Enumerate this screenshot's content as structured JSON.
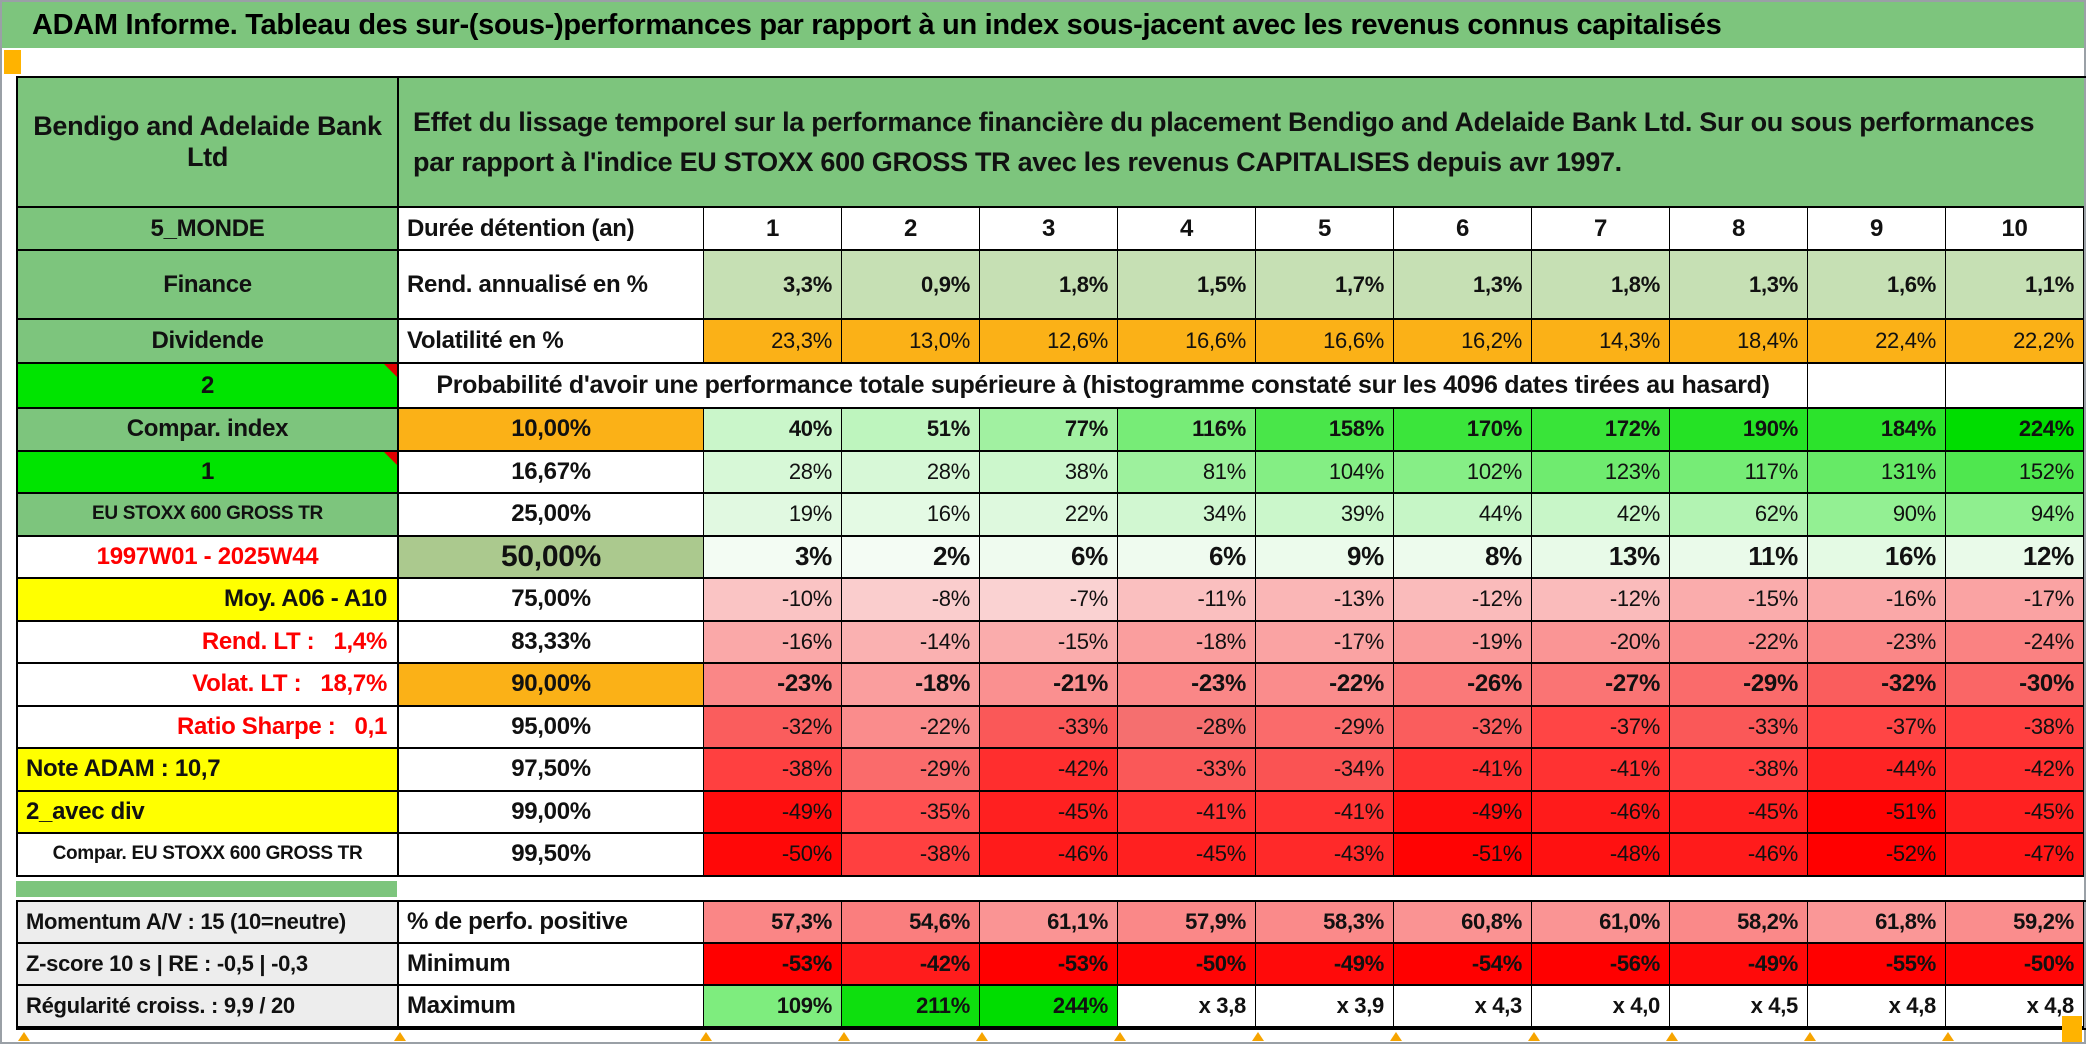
{
  "title": "ADAM Informe. Tableau des sur-(sous-)performances par rapport à un index sous-jacent avec les revenus connus capitalisés",
  "header": {
    "entity": "Bendigo and Adelaide Bank Ltd",
    "description": "Effet du lissage temporel sur la performance financière du placement Bendigo and Adelaide Bank Ltd. Sur ou sous performances par rapport à l'indice EU STOXX 600 GROSS TR avec les revenus CAPITALISES depuis avr 1997."
  },
  "palette": {
    "header_green": "#7dc57d",
    "bright_green": "#00e400",
    "orange": "#fbb117",
    "yellow": "#ffff00",
    "sage": "#abc98e",
    "light_green_row": "#c6e0b4",
    "gray_label": "#ededed",
    "red_text": "#fe0000",
    "pure_red": "#ff0000",
    "marker_orange": "#ffb300"
  },
  "table": {
    "rows": [
      {
        "h": "rh-a",
        "label": {
          "text": "5_MONDE",
          "cls": "lb-green"
        },
        "param": {
          "text": "Durée détention (an)",
          "cls": "pm-left"
        },
        "cells": [
          "1",
          "2",
          "3",
          "4",
          "5",
          "6",
          "7",
          "8",
          "9",
          "10"
        ],
        "bg": [
          "#fff",
          "#fff",
          "#fff",
          "#fff",
          "#fff",
          "#fff",
          "#fff",
          "#fff",
          "#fff",
          "#fff"
        ],
        "cells_bold": true,
        "cells_size": 24,
        "cells_align": "center"
      },
      {
        "h": "rh-b",
        "label": {
          "text": "Finance",
          "cls": "lb-green"
        },
        "param": {
          "text": "Rend. annualisé en %",
          "cls": "pm-left"
        },
        "cells": [
          "3,3%",
          "0,9%",
          "1,8%",
          "1,5%",
          "1,7%",
          "1,3%",
          "1,8%",
          "1,3%",
          "1,6%",
          "1,1%"
        ],
        "bg": [
          "#c6e0b4",
          "#c6e0b4",
          "#c6e0b4",
          "#c6e0b4",
          "#c6e0b4",
          "#c6e0b4",
          "#c6e0b4",
          "#c6e0b4",
          "#c6e0b4",
          "#c6e0b4"
        ],
        "cells_bold": true
      },
      {
        "h": "rh-c",
        "label": {
          "text": "Dividende",
          "cls": "lb-green"
        },
        "param": {
          "text": "Volatilité en %",
          "cls": "pm-left"
        },
        "cells": [
          "23,3%",
          "13,0%",
          "12,6%",
          "16,6%",
          "16,6%",
          "16,2%",
          "14,3%",
          "18,4%",
          "22,4%",
          "22,2%"
        ],
        "bg": [
          "#fbb117",
          "#fbb117",
          "#fbb117",
          "#fbb117",
          "#fbb117",
          "#fbb117",
          "#fbb117",
          "#fbb117",
          "#fbb117",
          "#fbb117"
        ]
      },
      {
        "h": "rh-d",
        "type": "prob",
        "label": {
          "text": "2",
          "cls": "lb-bright",
          "marker": true
        },
        "merged": "Probabilité d'avoir une performance totale supérieure à (histogramme constaté sur les 4096 dates tirées au hasard)",
        "empty": 2
      },
      {
        "h": "rh-e",
        "label": {
          "text": "Compar. index",
          "cls": "lb-green"
        },
        "param": {
          "text": "10,00%",
          "cls": "pm-orange"
        },
        "cells": [
          "40%",
          "51%",
          "77%",
          "116%",
          "158%",
          "170%",
          "172%",
          "190%",
          "184%",
          "224%"
        ],
        "bg": [
          "#caf6ca",
          "#bef5be",
          "#a1f1a1",
          "#77ec77",
          "#49e649",
          "#3be53b",
          "#39e439",
          "#25e225",
          "#2ce32c",
          "#00dd00"
        ],
        "cells_bold": true
      },
      {
        "h": "rh-e",
        "label": {
          "text": "1",
          "cls": "lb-bright",
          "marker": true
        },
        "param": {
          "text": "16,67%",
          "cls": "pm-pct"
        },
        "cells": [
          "28%",
          "28%",
          "38%",
          "81%",
          "104%",
          "102%",
          "123%",
          "117%",
          "131%",
          "152%"
        ],
        "bg": [
          "#d7f8d7",
          "#d7f8d7",
          "#ccf7cc",
          "#9df19d",
          "#84ee84",
          "#86ee86",
          "#6feb6f",
          "#76ec76",
          "#66ea66",
          "#4fe74f"
        ]
      },
      {
        "h": "rh-e",
        "label": {
          "text": "EU STOXX 600 GROSS TR",
          "cls": "lb-green-sm"
        },
        "param": {
          "text": "25,00%",
          "cls": "pm-pct"
        },
        "cells": [
          "19%",
          "16%",
          "22%",
          "34%",
          "39%",
          "44%",
          "42%",
          "62%",
          "90%",
          "94%"
        ],
        "bg": [
          "#e1f9e1",
          "#e4fae4",
          "#def9de",
          "#d1f7d1",
          "#cbf7cb",
          "#c6f6c6",
          "#c8f6c8",
          "#b2f3b2",
          "#93f093",
          "#8fef8f"
        ]
      },
      {
        "h": "rh-e",
        "label": {
          "text": "1997W01 - 2025W44",
          "cls": "lb-red-c"
        },
        "param": {
          "text": "50,00%",
          "cls": "pm-sage"
        },
        "cells": [
          "3%",
          "2%",
          "6%",
          "6%",
          "9%",
          "8%",
          "13%",
          "11%",
          "16%",
          "12%"
        ],
        "bg": [
          "#f3fcf3",
          "#f4fcf4",
          "#effbef",
          "#effbef",
          "#ecfbec",
          "#edfbed",
          "#e8fae8",
          "#eafaea",
          "#e4fae4",
          "#e9fae9"
        ],
        "cells_bold": true,
        "cells_size": 26
      },
      {
        "h": "rh-e",
        "label": {
          "text": "Moy. A06 - A10",
          "cls": "lb-yellow-r"
        },
        "param": {
          "text": "75,00%",
          "cls": "pm-pct"
        },
        "cells": [
          "-10%",
          "-8%",
          "-7%",
          "-11%",
          "-13%",
          "-12%",
          "-12%",
          "-15%",
          "-16%",
          "-17%"
        ],
        "bg": [
          "#fac4c4",
          "#facdcd",
          "#fad2d2",
          "#fabfbf",
          "#fab6b6",
          "#fabbbb",
          "#fabbbb",
          "#faacac",
          "#faa8a8",
          "#faa3a3"
        ]
      },
      {
        "h": "rh-e",
        "label": {
          "text": "Rend. LT :   1,4%",
          "cls": "lb-red-r"
        },
        "param": {
          "text": "83,33%",
          "cls": "pm-pct"
        },
        "cells": [
          "-16%",
          "-14%",
          "-15%",
          "-18%",
          "-17%",
          "-19%",
          "-20%",
          "-22%",
          "-23%",
          "-24%"
        ],
        "bg": [
          "#faa8a8",
          "#fab1b1",
          "#faacac",
          "#fa9e9e",
          "#faa3a3",
          "#fa9a9a",
          "#fa9595",
          "#fa8c8c",
          "#fa8787",
          "#fa8282"
        ]
      },
      {
        "h": "rh-e",
        "label": {
          "text": "Volat. LT :   18,7%",
          "cls": "lb-red-r"
        },
        "param": {
          "text": "90,00%",
          "cls": "pm-orange"
        },
        "cells": [
          "-23%",
          "-18%",
          "-21%",
          "-23%",
          "-22%",
          "-26%",
          "-27%",
          "-29%",
          "-32%",
          "-30%"
        ],
        "bg": [
          "#fa8787",
          "#fa9e9e",
          "#fa9090",
          "#fa8787",
          "#fa8c8c",
          "#fa7979",
          "#fa7474",
          "#fa6b6b",
          "#fa5d5d",
          "#fa6666"
        ],
        "cells_bold": true,
        "cells_size": 24
      },
      {
        "h": "rh-e",
        "label": {
          "text": "Ratio Sharpe :   0,1",
          "cls": "lb-red-r"
        },
        "param": {
          "text": "95,00%",
          "cls": "pm-pct"
        },
        "cells": [
          "-32%",
          "-22%",
          "-33%",
          "-28%",
          "-29%",
          "-32%",
          "-37%",
          "-33%",
          "-37%",
          "-38%"
        ],
        "bg": [
          "#fa5d5d",
          "#fa8c8c",
          "#fa5858",
          "#f56f6f",
          "#fa6b6b",
          "#fa5d5d",
          "#ff4545",
          "#fa5858",
          "#ff4545",
          "#ff4040"
        ]
      },
      {
        "h": "rh-e",
        "label": {
          "text": "Note ADAM : 10,7",
          "cls": "lb-yellow-l"
        },
        "param": {
          "text": "97,50%",
          "cls": "pm-pct"
        },
        "cells": [
          "-38%",
          "-29%",
          "-42%",
          "-33%",
          "-34%",
          "-41%",
          "-41%",
          "-38%",
          "-44%",
          "-42%"
        ],
        "bg": [
          "#ff4040",
          "#fa6b6b",
          "#ff2e2e",
          "#fa5858",
          "#fa5353",
          "#ff3232",
          "#ff3232",
          "#ff4040",
          "#ff2424",
          "#ff2e2e"
        ]
      },
      {
        "h": "rh-e",
        "label": {
          "text": "2_avec div",
          "cls": "lb-yellow-l"
        },
        "param": {
          "text": "99,00%",
          "cls": "pm-pct"
        },
        "cells": [
          "-49%",
          "-35%",
          "-45%",
          "-41%",
          "-41%",
          "-49%",
          "-46%",
          "-45%",
          "-51%",
          "-45%"
        ],
        "bg": [
          "#ff0d0d",
          "#ff4f4f",
          "#ff2020",
          "#ff3232",
          "#ff3232",
          "#ff0d0d",
          "#ff1b1b",
          "#ff2020",
          "#ff0303",
          "#ff2020"
        ]
      },
      {
        "h": "rh-e",
        "label": {
          "text": "Compar. EU STOXX 600 GROSS TR",
          "cls": "lb-white-sm"
        },
        "param": {
          "text": "99,50%",
          "cls": "pm-pct"
        },
        "cells": [
          "-50%",
          "-38%",
          "-46%",
          "-45%",
          "-43%",
          "-51%",
          "-48%",
          "-46%",
          "-52%",
          "-47%"
        ],
        "bg": [
          "#ff0808",
          "#ff4040",
          "#ff1b1b",
          "#ff2020",
          "#ff2929",
          "#ff0303",
          "#ff1111",
          "#ff1b1b",
          "#ff0000",
          "#ff1616"
        ]
      }
    ],
    "bottom_rows": [
      {
        "h": "rh-f",
        "label": {
          "text": "Momentum A/V : 15 (10=neutre)",
          "cls": "lb-gray"
        },
        "param": {
          "text": "% de perfo. positive",
          "cls": "pm-left"
        },
        "cells": [
          "57,3%",
          "54,6%",
          "61,1%",
          "57,9%",
          "58,3%",
          "60,8%",
          "61,0%",
          "58,2%",
          "61,8%",
          "59,2%"
        ],
        "bg": [
          "#fa8686",
          "#fa7e7e",
          "#fa9494",
          "#fa8888",
          "#fa8a8a",
          "#fa9393",
          "#fa9494",
          "#fa8989",
          "#fa9797",
          "#fa8d8d"
        ],
        "cells_bold": true,
        "cells_size": 23
      },
      {
        "h": "rh-f",
        "label": {
          "text": "Z-score 10 s | RE : -0,5 | -0,3",
          "cls": "lb-gray"
        },
        "param": {
          "text": "Minimum",
          "cls": "pm-left"
        },
        "cells": [
          "-53%",
          "-42%",
          "-53%",
          "-50%",
          "-49%",
          "-54%",
          "-56%",
          "-49%",
          "-55%",
          "-50%"
        ],
        "bg": [
          "#ff0000",
          "#ff1c1c",
          "#ff0000",
          "#ff0505",
          "#ff0a0a",
          "#ff0000",
          "#ff0000",
          "#ff0a0a",
          "#ff0000",
          "#ff0505"
        ],
        "cells_bold": true,
        "cells_size": 23
      },
      {
        "h": "rh-f",
        "label": {
          "text": "Régularité croiss. : 9,9 / 20",
          "cls": "lb-gray"
        },
        "param": {
          "text": "Maximum",
          "cls": "pm-left"
        },
        "cells": [
          "109%",
          "211%",
          "244%",
          "x 3,8",
          "x 3,9",
          "x 4,3",
          "x 4,0",
          "x 4,5",
          "x 4,8",
          "x 4,8"
        ],
        "bg": [
          "#7eed7e",
          "#0edf0e",
          "#00dd00",
          "#ffffff",
          "#ffffff",
          "#ffffff",
          "#ffffff",
          "#ffffff",
          "#ffffff",
          "#ffffff"
        ],
        "cells_bold": true,
        "cells_size": 23
      }
    ]
  }
}
